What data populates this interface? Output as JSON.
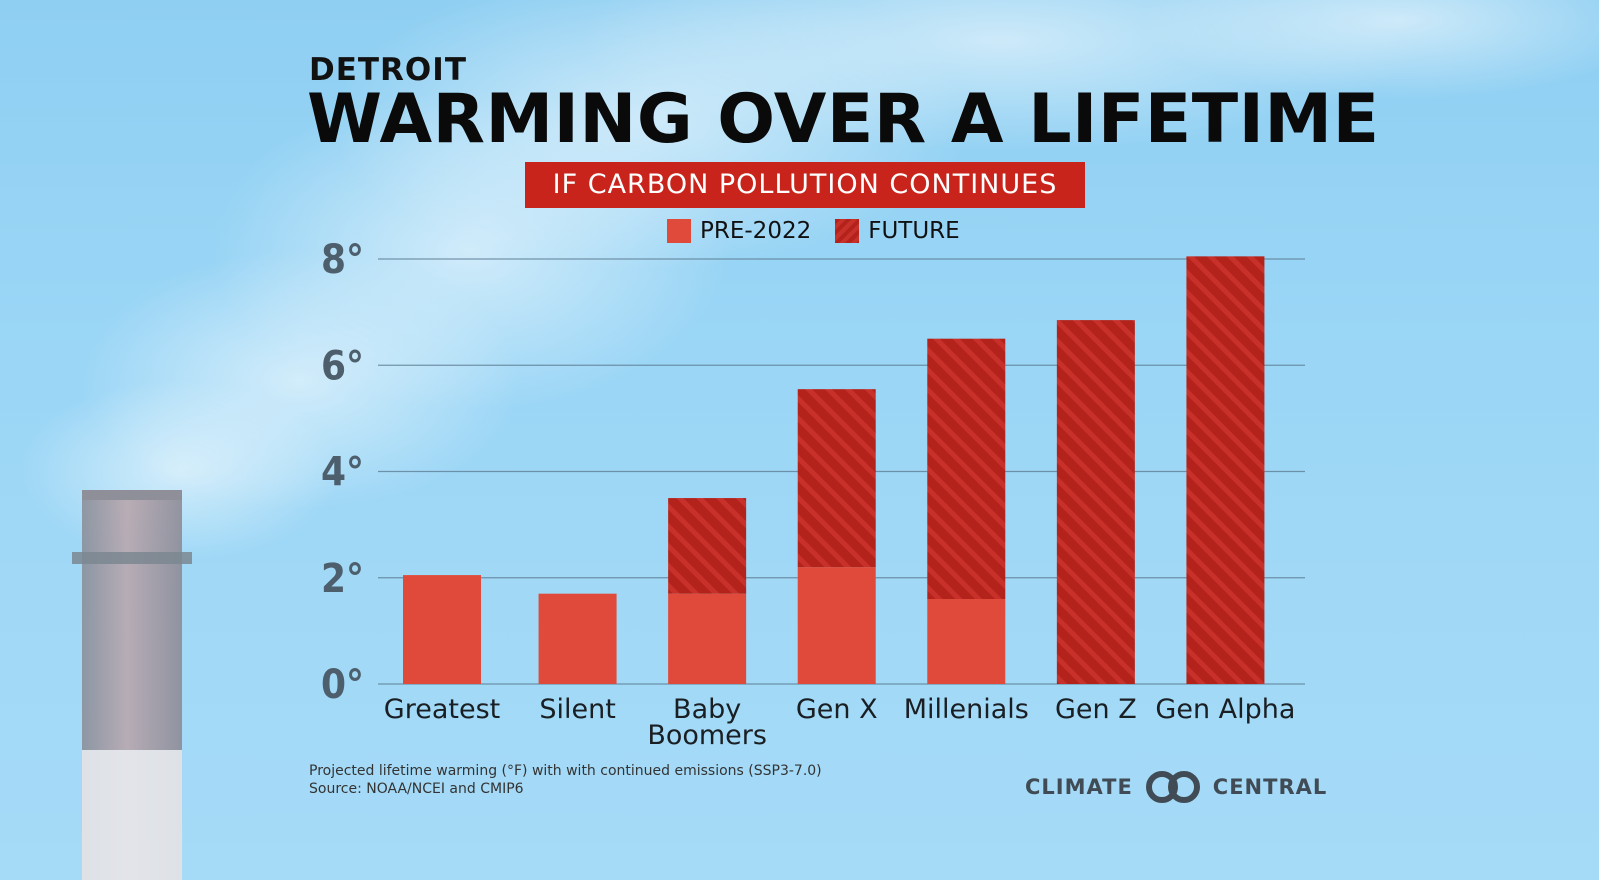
{
  "header": {
    "kicker": "DETROIT",
    "title": "WARMING OVER A LIFETIME",
    "subtitle": "IF CARBON POLLUTION CONTINUES"
  },
  "legend": {
    "pre_label": "PRE-2022",
    "future_label": "FUTURE"
  },
  "footnote": {
    "line1": "Projected lifetime warming (°F) with with continued emissions (SSP3-7.0)",
    "line2": "Source: NOAA/NCEI and CMIP6"
  },
  "brand": {
    "left": "CLIMATE",
    "right": "CENTRAL",
    "icon": "climate-central-logo-icon"
  },
  "colors": {
    "pre": "#e04a3a",
    "future": "#b3231b",
    "future_stripe": "#c8302a",
    "grid": "#5f7f95",
    "subtitle_bg": "#c9241c"
  },
  "chart_data": {
    "type": "bar",
    "stacked": true,
    "title": "WARMING OVER A LIFETIME",
    "subtitle": "IF CARBON POLLUTION CONTINUES",
    "categories": [
      "Greatest",
      "Silent",
      "Baby Boomers",
      "Gen X",
      "Millenials",
      "Gen Z",
      "Gen Alpha"
    ],
    "series": [
      {
        "name": "PRE-2022",
        "values": [
          2.05,
          1.7,
          1.7,
          2.2,
          1.6,
          0,
          0
        ]
      },
      {
        "name": "FUTURE",
        "values": [
          0,
          0,
          1.8,
          3.35,
          4.9,
          6.85,
          8.05
        ]
      }
    ],
    "y_ticks": [
      "0°",
      "2°",
      "4°",
      "6°",
      "8°"
    ],
    "ylim": [
      0,
      8
    ],
    "grid": true,
    "legend_position": "top-center"
  }
}
